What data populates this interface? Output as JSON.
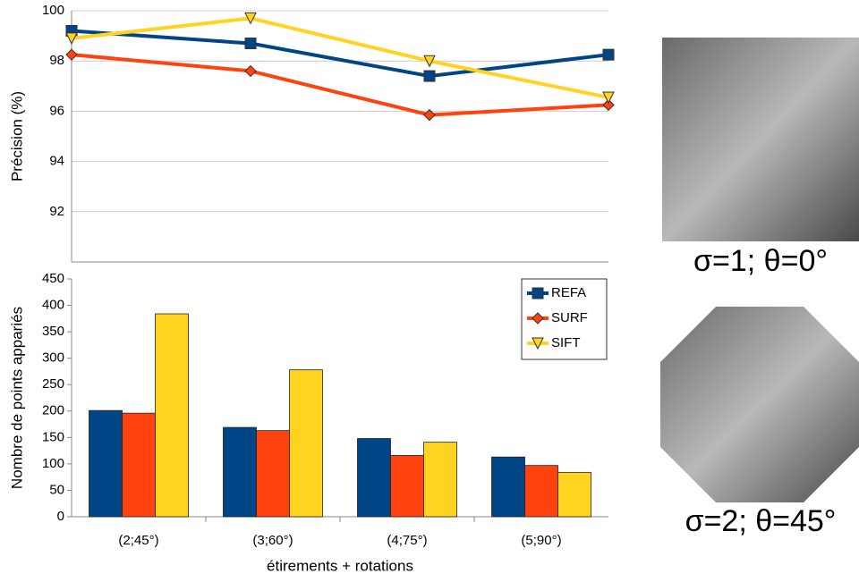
{
  "chart_data": [
    {
      "type": "line",
      "y_label": "Précision (%)",
      "ylim": [
        90,
        100
      ],
      "yticks": [
        92,
        94,
        96,
        98,
        100
      ],
      "grid": true,
      "series": [
        {
          "color": "#004586",
          "marker": "square",
          "values": [
            99.2,
            98.7,
            97.4,
            98.25
          ]
        },
        {
          "color": "#ff420e",
          "marker": "diamond",
          "values": [
            98.25,
            97.6,
            95.85,
            96.25
          ]
        },
        {
          "color": "#ffd320",
          "marker": "triangle-down",
          "values": [
            98.9,
            99.7,
            98.0,
            96.55
          ]
        }
      ]
    },
    {
      "type": "bar",
      "y_label": "Nombre de points appariés",
      "x_label": "étirements + rotations",
      "categories": [
        "(2;45°)",
        "(3;60°)",
        "(4;75°)",
        "(5;90°)"
      ],
      "ylim": [
        0,
        450
      ],
      "yticks": [
        0,
        50,
        100,
        150,
        200,
        250,
        300,
        350,
        400,
        450
      ],
      "legend": "upper right",
      "series": [
        {
          "name": "REFA",
          "color": "#004586",
          "values": [
            201,
            169,
            148,
            113
          ]
        },
        {
          "name": "SURF",
          "color": "#ff420e",
          "values": [
            196,
            163,
            116,
            97
          ]
        },
        {
          "name": "SIFT",
          "color": "#ffd320",
          "values": [
            384,
            278,
            141,
            84
          ]
        }
      ]
    }
  ],
  "images": [
    {
      "caption": "σ=1; θ=0°"
    },
    {
      "caption": "σ=2; θ=45°"
    }
  ]
}
